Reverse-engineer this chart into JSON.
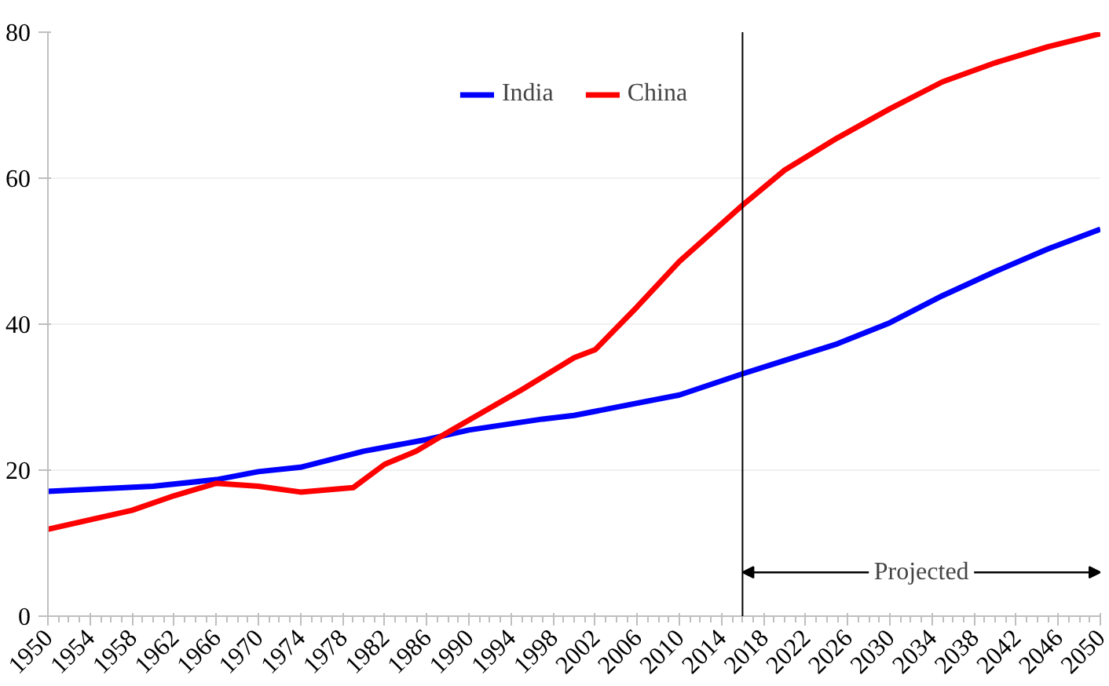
{
  "chart_data": {
    "type": "line",
    "x": [
      1950,
      1958,
      1962,
      1966,
      1970,
      1974,
      1979,
      1982,
      1985,
      1988,
      1995,
      2000,
      2002,
      2006,
      2010,
      2016,
      2020,
      2025,
      2030,
      2035,
      2040,
      2045,
      2050
    ],
    "series": [
      {
        "name": "India",
        "color": "#0000ff",
        "x": [
          1950,
          1960,
          1966,
          1970,
          1974,
          1980,
          1986,
          1990,
          1997,
          2000,
          2010,
          2016,
          2025,
          2030,
          2035,
          2040,
          2045,
          2050
        ],
        "values": [
          17.1,
          17.8,
          18.7,
          19.8,
          20.4,
          22.6,
          24.2,
          25.5,
          27.0,
          27.5,
          30.3,
          33.2,
          37.3,
          40.2,
          43.9,
          47.2,
          50.3,
          53.0
        ]
      },
      {
        "name": "China",
        "color": "#ff0000",
        "values": [
          11.9,
          14.5,
          16.5,
          18.2,
          17.8,
          17.0,
          17.6,
          20.8,
          22.6,
          25.2,
          31.0,
          35.4,
          36.5,
          42.4,
          48.6,
          56.3,
          61.1,
          65.5,
          69.5,
          73.2,
          75.8,
          78.0,
          79.8
        ]
      }
    ],
    "xlim": [
      1950,
      2050
    ],
    "xticks": [
      1950,
      1954,
      1958,
      1962,
      1966,
      1970,
      1974,
      1978,
      1982,
      1986,
      1990,
      1994,
      1998,
      2002,
      2006,
      2010,
      2014,
      2018,
      2022,
      2026,
      2030,
      2034,
      2038,
      2042,
      2046,
      2050
    ],
    "ylim": [
      0,
      80
    ],
    "yticks": [
      0,
      20,
      40,
      60,
      80
    ],
    "grid": "y",
    "legend": "top",
    "line_style": "solid",
    "marker": "none",
    "ref_lines": [
      {
        "axis": "x",
        "value": 2016,
        "color": "#000000"
      }
    ],
    "annotations": [
      {
        "text": "Projected",
        "x": 2016,
        "y": 6
      }
    ]
  }
}
